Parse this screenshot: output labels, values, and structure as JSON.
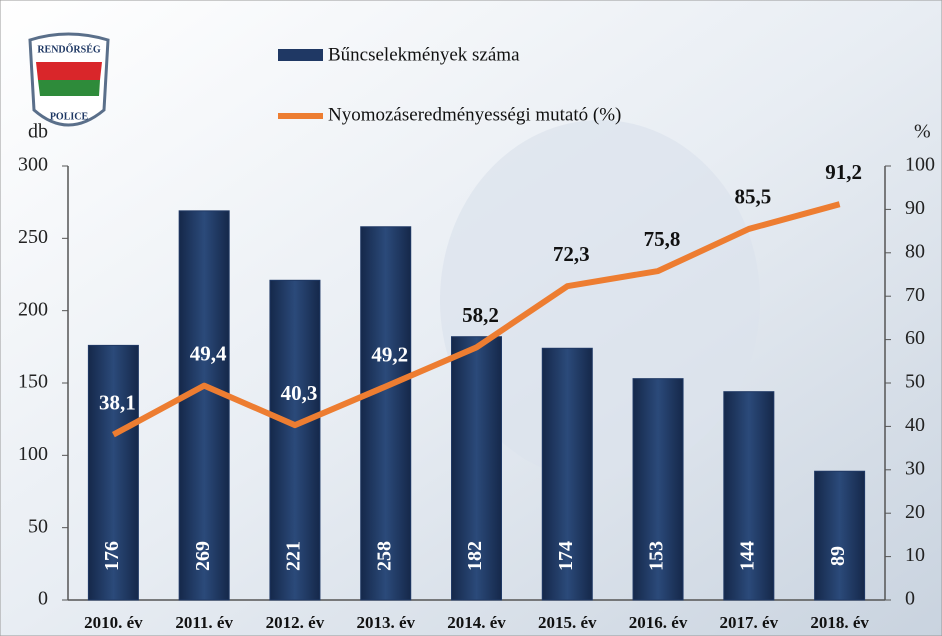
{
  "logo": {
    "top": "RENDŐRSÉG",
    "bottom": "POLICE"
  },
  "chart_data": {
    "type": "bar",
    "categories": [
      "2010. év",
      "2011. év",
      "2012. év",
      "2013. év",
      "2014. év",
      "2015. év",
      "2016. év",
      "2017. év",
      "2018. év"
    ],
    "series": [
      {
        "name": "Bűncselekmények száma",
        "color": "#1f3864",
        "values": [
          176,
          269,
          221,
          258,
          182,
          174,
          153,
          144,
          89
        ]
      },
      {
        "name": "Nyomozáseredményességi mutató (%)",
        "type": "line",
        "axis": "y2",
        "color": "#ed7d31",
        "values": [
          38.1,
          49.4,
          40.3,
          49.2,
          58.2,
          72.3,
          75.8,
          85.5,
          91.2
        ],
        "value_labels": [
          "38,1",
          "49,4",
          "40,3",
          "49,2",
          "58,2",
          "72,3",
          "75,8",
          "85,5",
          "91,2"
        ]
      }
    ],
    "ylabel": "db",
    "y2label": "%",
    "ylim": [
      0,
      300
    ],
    "yticks": [
      0,
      50,
      100,
      150,
      200,
      250,
      300
    ],
    "y2lim": [
      0,
      100
    ],
    "y2ticks": [
      0,
      10,
      20,
      30,
      40,
      50,
      60,
      70,
      80,
      90,
      100
    ],
    "grid": false
  }
}
